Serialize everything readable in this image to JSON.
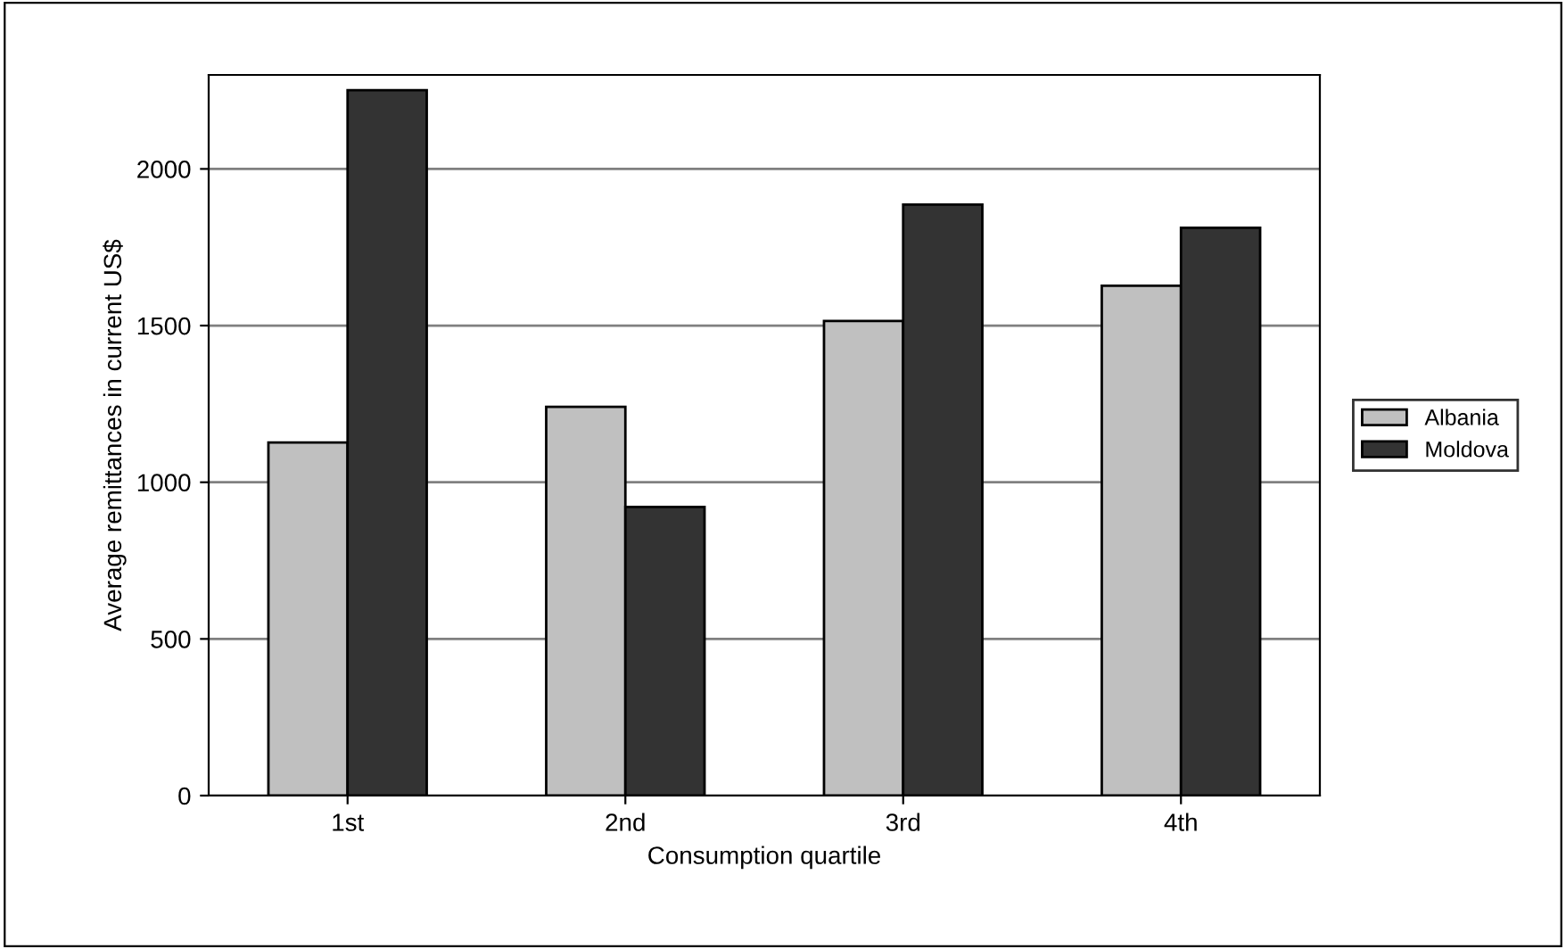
{
  "chart_data": {
    "type": "bar",
    "categories": [
      "1st",
      "2nd",
      "3rd",
      "4th"
    ],
    "series": [
      {
        "name": "Albania",
        "color": "#c0c0c0",
        "values": [
          1127,
          1241,
          1515,
          1627
        ]
      },
      {
        "name": "Moldova",
        "color": "#333333",
        "values": [
          2251,
          921,
          1886,
          1812
        ]
      }
    ],
    "xlabel": "Consumption quartile",
    "ylabel": "Average remittances in current US$",
    "ylim": [
      0,
      2300
    ],
    "yticks": [
      0,
      500,
      1000,
      1500,
      2000
    ],
    "grid": "y",
    "legend": "right"
  }
}
